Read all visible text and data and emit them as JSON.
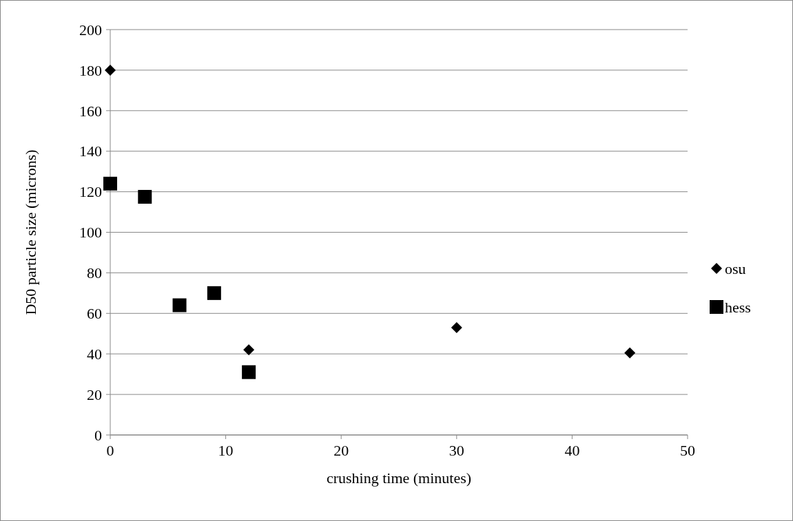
{
  "chart_data": {
    "type": "scatter",
    "xlabel": "crushing time (minutes)",
    "ylabel": "D50 particle size (microns)",
    "xlim": [
      0,
      50
    ],
    "xticks": [
      0,
      10,
      20,
      30,
      40,
      50
    ],
    "ylim": [
      0,
      200
    ],
    "yticks": [
      0,
      20,
      40,
      60,
      80,
      100,
      120,
      140,
      160,
      180,
      200
    ],
    "grid": "y",
    "legend": "right",
    "series": [
      {
        "name": "osu",
        "color": "#000000",
        "marker": "diamond",
        "x": [
          0,
          12,
          30,
          45
        ],
        "values": [
          180,
          42,
          53,
          40.5
        ]
      },
      {
        "name": "hess",
        "color": "#000000",
        "marker": "square",
        "x": [
          0,
          3,
          6,
          9,
          12
        ],
        "values": [
          124,
          117.5,
          64,
          70,
          31
        ]
      }
    ]
  }
}
